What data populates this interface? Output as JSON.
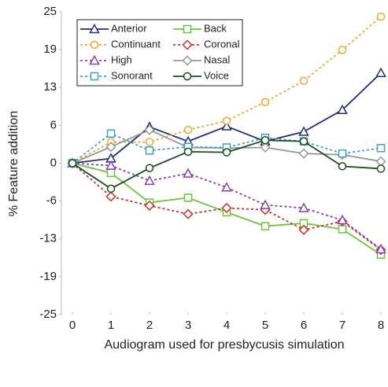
{
  "chart_data": {
    "type": "line",
    "y_label": "% Feature addition",
    "x_label": "Audiogram used for presbycusis simulation",
    "x": [
      0,
      1,
      2,
      3,
      4,
      5,
      6,
      7,
      8
    ],
    "xlim": [
      0,
      8
    ],
    "xticks": [
      0,
      1,
      2,
      3,
      4,
      5,
      6,
      7,
      8
    ],
    "ylim": [
      -25,
      25
    ],
    "yticks": [
      {
        "value": -25,
        "label": "-25"
      },
      {
        "value": -18.75,
        "label": "-19"
      },
      {
        "value": -12.5,
        "label": "-13"
      },
      {
        "value": -6.25,
        "label": "-6"
      },
      0,
      {
        "value": 6.25,
        "label": "6"
      },
      {
        "value": 12.5,
        "label": "13"
      },
      {
        "value": 18.75,
        "label": "19"
      },
      25
    ],
    "legend": "upper left",
    "series": [
      {
        "name": "Anterior",
        "color": "#1f2f7a",
        "marker": "triangle",
        "dashed": false,
        "values": [
          0,
          0.8,
          6.0,
          3.6,
          6.1,
          3.6,
          5.2,
          8.8,
          14.9
        ]
      },
      {
        "name": "Back",
        "color": "#6cc63a",
        "marker": "square",
        "dashed": false,
        "values": [
          0,
          -1.6,
          -6.5,
          -5.7,
          -8.1,
          -10.4,
          -9.9,
          -10.9,
          -15.1
        ]
      },
      {
        "name": "Continuant",
        "color": "#f0a830",
        "marker": "circle",
        "dashed": true,
        "values": [
          0,
          3.5,
          3.5,
          5.5,
          7.0,
          10.1,
          13.6,
          18.7,
          24.2
        ]
      },
      {
        "name": "Coronal",
        "color": "#c8302a",
        "marker": "diamond",
        "dashed": true,
        "values": [
          0,
          -5.5,
          -7.0,
          -8.4,
          -7.4,
          -7.7,
          -11.0,
          -9.6,
          -14.3
        ]
      },
      {
        "name": "High",
        "color": "#8a3fb0",
        "marker": "triangle",
        "dashed": true,
        "values": [
          0,
          -0.4,
          -2.9,
          -1.7,
          -4.0,
          -6.9,
          -7.4,
          -9.4,
          -14.2
        ]
      },
      {
        "name": "Nasal",
        "color": "#999999",
        "marker": "diamond",
        "dashed": false,
        "values": [
          0,
          2.7,
          5.5,
          2.6,
          2.5,
          2.6,
          1.6,
          1.4,
          0.3
        ]
      },
      {
        "name": "Sonorant",
        "color": "#3fa0c8",
        "marker": "square",
        "dashed": true,
        "values": [
          0,
          4.9,
          2.1,
          2.7,
          2.6,
          4.2,
          3.6,
          1.6,
          2.5
        ]
      },
      {
        "name": "Voice",
        "color": "#1e4d1e",
        "marker": "circle",
        "dashed": false,
        "values": [
          0,
          -4.2,
          -0.8,
          1.9,
          1.8,
          3.8,
          3.6,
          -0.5,
          -0.9
        ]
      }
    ]
  }
}
